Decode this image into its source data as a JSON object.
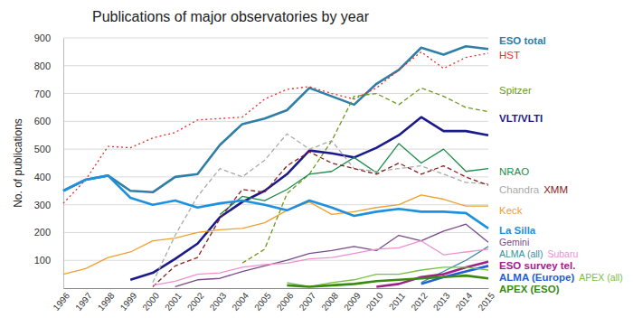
{
  "chart_data": {
    "type": "line",
    "title": "Publications of major observatories by year",
    "y_label": "No. of publications",
    "categories": [
      "1996",
      "1997",
      "1998",
      "1999",
      "2000",
      "2001",
      "2002",
      "2003",
      "2004",
      "2005",
      "2006",
      "2007",
      "2008",
      "2009",
      "2010",
      "2011",
      "2012",
      "2013",
      "2014",
      "2015"
    ],
    "ylim": [
      0,
      900
    ],
    "yticks": [
      100,
      200,
      300,
      400,
      500,
      600,
      700,
      800,
      900
    ],
    "grid": true,
    "legend": "right",
    "series": [
      {
        "name": "ESO total",
        "color": "#2e7ea6",
        "line_style": "solid",
        "values": [
          350,
          390,
          405,
          350,
          345,
          400,
          410,
          515,
          590,
          610,
          640,
          720,
          690,
          660,
          735,
          785,
          865,
          840,
          870,
          860
        ]
      },
      {
        "name": "HST",
        "color": "#e0312b",
        "line_style": "dotted",
        "values": [
          305,
          390,
          510,
          505,
          540,
          560,
          605,
          610,
          615,
          680,
          715,
          725,
          700,
          680,
          720,
          785,
          850,
          790,
          830,
          845
        ]
      },
      {
        "name": "Spitzer",
        "color": "#6a9a1f",
        "line_style": "dashed",
        "values": [
          null,
          null,
          null,
          null,
          null,
          null,
          null,
          null,
          90,
          140,
          340,
          410,
          530,
          690,
          700,
          660,
          720,
          690,
          650,
          635
        ]
      },
      {
        "name": "VLT/VLTI",
        "color": "#1a1a8c",
        "line_style": "solid",
        "values": [
          null,
          null,
          null,
          30,
          55,
          105,
          160,
          255,
          310,
          350,
          410,
          495,
          485,
          470,
          505,
          550,
          615,
          565,
          565,
          550
        ]
      },
      {
        "name": "NRAO",
        "color": "#1e8c4a",
        "line_style": "solid",
        "values": [
          null,
          null,
          null,
          null,
          null,
          null,
          null,
          265,
          330,
          315,
          355,
          410,
          420,
          470,
          415,
          520,
          450,
          500,
          420,
          430
        ]
      },
      {
        "name": "Chandra",
        "color": "#aaaaaa",
        "line_style": "dashed",
        "values": [
          null,
          null,
          null,
          null,
          20,
          190,
          330,
          430,
          400,
          460,
          555,
          500,
          530,
          430,
          420,
          430,
          440,
          410,
          380,
          375
        ]
      },
      {
        "name": "XMM",
        "color": "#8b2020",
        "line_style": "dashed",
        "values": [
          null,
          null,
          null,
          null,
          5,
          80,
          110,
          250,
          355,
          345,
          440,
          490,
          450,
          430,
          410,
          450,
          410,
          440,
          400,
          370
        ]
      },
      {
        "name": "Keck",
        "color": "#f0a030",
        "line_style": "solid",
        "values": [
          50,
          70,
          110,
          130,
          170,
          180,
          200,
          210,
          215,
          235,
          280,
          310,
          265,
          275,
          290,
          300,
          335,
          320,
          295,
          295
        ]
      },
      {
        "name": "La Silla",
        "color": "#1e90e0",
        "line_style": "solid",
        "values": [
          350,
          390,
          405,
          325,
          300,
          315,
          290,
          305,
          315,
          300,
          280,
          315,
          290,
          260,
          275,
          285,
          275,
          275,
          270,
          215
        ]
      },
      {
        "name": "Gemini",
        "color": "#7a4a8a",
        "line_style": "solid",
        "values": [
          null,
          null,
          null,
          null,
          null,
          5,
          30,
          35,
          60,
          80,
          100,
          125,
          135,
          150,
          135,
          190,
          170,
          205,
          230,
          165
        ]
      },
      {
        "name": "ALMA (all)",
        "color": "#3a8fa0",
        "line_style": "solid",
        "values": [
          null,
          null,
          null,
          null,
          null,
          null,
          null,
          null,
          null,
          null,
          null,
          null,
          null,
          null,
          null,
          null,
          20,
          60,
          100,
          150
        ]
      },
      {
        "name": "Subaru",
        "color": "#f090d0",
        "line_style": "solid",
        "values": [
          null,
          null,
          null,
          null,
          10,
          25,
          50,
          55,
          75,
          85,
          90,
          105,
          110,
          125,
          140,
          145,
          170,
          120,
          130,
          140
        ]
      },
      {
        "name": "ESO survey tel.",
        "color": "#a0208a",
        "line_style": "solid",
        "values": [
          null,
          null,
          null,
          null,
          null,
          null,
          null,
          null,
          null,
          null,
          null,
          null,
          null,
          null,
          5,
          15,
          40,
          50,
          75,
          95
        ]
      },
      {
        "name": "ALMA (Europe)",
        "color": "#1f5fd8",
        "line_style": "solid",
        "values": [
          null,
          null,
          null,
          null,
          null,
          null,
          null,
          null,
          null,
          null,
          null,
          null,
          null,
          null,
          null,
          null,
          15,
          40,
          60,
          80
        ]
      },
      {
        "name": "APEX (all)",
        "color": "#7ac040",
        "line_style": "solid",
        "values": [
          null,
          null,
          null,
          null,
          null,
          null,
          null,
          null,
          null,
          null,
          20,
          5,
          20,
          30,
          50,
          50,
          65,
          75,
          75,
          65
        ]
      },
      {
        "name": "APEX (ESO)",
        "color": "#3a8a10",
        "line_style": "solid",
        "values": [
          null,
          null,
          null,
          null,
          null,
          null,
          null,
          null,
          null,
          null,
          10,
          5,
          10,
          15,
          25,
          30,
          35,
          40,
          45,
          35
        ]
      }
    ]
  }
}
